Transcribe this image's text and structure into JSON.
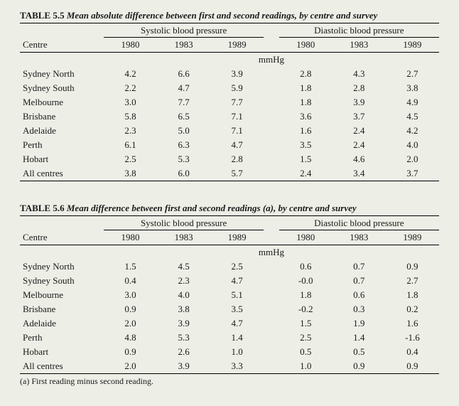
{
  "tables": [
    {
      "number": "TABLE 5.5",
      "title": "Mean absolute difference between first  and second readings, by centre and survey",
      "group_headers": [
        "Systolic blood pressure",
        "Diastolic blood pressure"
      ],
      "row_header": "Centre",
      "years": [
        "1980",
        "1983",
        "1989",
        "1980",
        "1983",
        "1989"
      ],
      "unit": "mmHg",
      "rows": [
        {
          "label": "Sydney North",
          "values": [
            "4.2",
            "6.6",
            "3.9",
            "2.8",
            "4.3",
            "2.7"
          ]
        },
        {
          "label": "Sydney South",
          "values": [
            "2.2",
            "4.7",
            "5.9",
            "1.8",
            "2.8",
            "3.8"
          ]
        },
        {
          "label": "Melbourne",
          "values": [
            "3.0",
            "7.7",
            "7.7",
            "1.8",
            "3.9",
            "4.9"
          ]
        },
        {
          "label": "Brisbane",
          "values": [
            "5.8",
            "6.5",
            "7.1",
            "3.6",
            "3.7",
            "4.5"
          ]
        },
        {
          "label": "Adelaide",
          "values": [
            "2.3",
            "5.0",
            "7.1",
            "1.6",
            "2.4",
            "4.2"
          ]
        },
        {
          "label": "Perth",
          "values": [
            "6.1",
            "6.3",
            "4.7",
            "3.5",
            "2.4",
            "4.0"
          ]
        },
        {
          "label": "Hobart",
          "values": [
            "2.5",
            "5.3",
            "2.8",
            "1.5",
            "4.6",
            "2.0"
          ]
        },
        {
          "label": "All centres",
          "values": [
            "3.8",
            "6.0",
            "5.7",
            "2.4",
            "3.4",
            "3.7"
          ]
        }
      ],
      "footnote": ""
    },
    {
      "number": "TABLE 5.6",
      "title": "Mean difference between first  and second readings (a), by centre and survey",
      "group_headers": [
        "Systolic blood pressure",
        "Diastolic blood pressure"
      ],
      "row_header": "Centre",
      "years": [
        "1980",
        "1983",
        "1989",
        "1980",
        "1983",
        "1989"
      ],
      "unit": "mmHg",
      "rows": [
        {
          "label": "Sydney North",
          "values": [
            "1.5",
            "4.5",
            "2.5",
            "0.6",
            "0.7",
            "0.9"
          ]
        },
        {
          "label": "Sydney South",
          "values": [
            "0.4",
            "2.3",
            "4.7",
            "-0.0",
            "0.7",
            "2.7"
          ]
        },
        {
          "label": "Melbourne",
          "values": [
            "3.0",
            "4.0",
            "5.1",
            "1.8",
            "0.6",
            "1.8"
          ]
        },
        {
          "label": "Brisbane",
          "values": [
            "0.9",
            "3.8",
            "3.5",
            "-0.2",
            "0.3",
            "0.2"
          ]
        },
        {
          "label": "Adelaide",
          "values": [
            "2.0",
            "3.9",
            "4.7",
            "1.5",
            "1.9",
            "1.6"
          ]
        },
        {
          "label": "Perth",
          "values": [
            "4.8",
            "5.3",
            "1.4",
            "2.5",
            "1.4",
            "-1.6"
          ]
        },
        {
          "label": "Hobart",
          "values": [
            "0.9",
            "2.6",
            "1.0",
            "0.5",
            "0.5",
            "0.4"
          ]
        },
        {
          "label": "All centres",
          "values": [
            "2.0",
            "3.9",
            "3.3",
            "1.0",
            "0.9",
            "0.9"
          ]
        }
      ],
      "footnote": "(a) First reading minus second reading."
    }
  ]
}
